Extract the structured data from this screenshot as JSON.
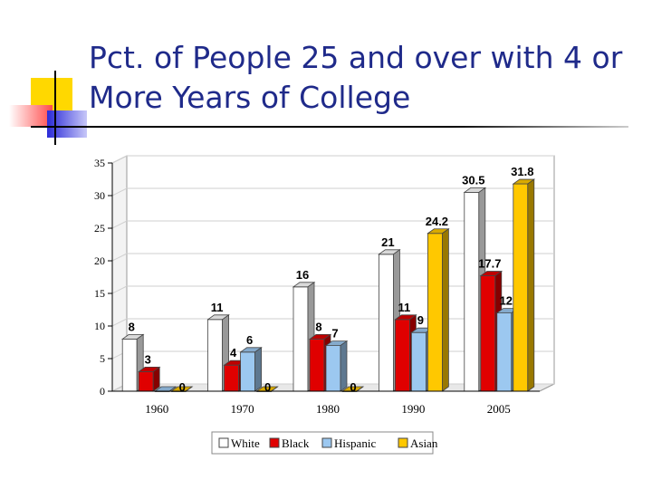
{
  "slide": {
    "title": "Pct. of People 25 and over with 4 or More Years of College"
  },
  "colors": {
    "title": "#1f2a8a",
    "deco_yellow": "#ffd800",
    "deco_red": "#ff3a3a",
    "deco_blue": "#2a2ad8",
    "rule": "#000000"
  },
  "chart_data": {
    "type": "bar",
    "style": "3d-clustered",
    "title": "",
    "xlabel": "",
    "ylabel": "",
    "ylim": [
      0,
      35
    ],
    "yticks": [
      0,
      5,
      10,
      15,
      20,
      25,
      30,
      35
    ],
    "grid": true,
    "legend_position": "bottom",
    "categories": [
      "1960",
      "1970",
      "1980",
      "1990",
      "2005"
    ],
    "series": [
      {
        "name": "White",
        "color": "#ffffff",
        "values": [
          8,
          11,
          16,
          21,
          30.5
        ],
        "labels": [
          "8",
          "11",
          "16",
          "21",
          "30.5"
        ]
      },
      {
        "name": "Black",
        "color": "#e00000",
        "values": [
          3,
          4,
          8,
          11,
          17.7
        ],
        "labels": [
          "3",
          "4",
          "8",
          "11",
          "17.7"
        ]
      },
      {
        "name": "Hispanic",
        "color": "#9cc8f0",
        "values": [
          0,
          6,
          7,
          9,
          12
        ],
        "labels": [
          "",
          "6",
          "7",
          "9",
          "12"
        ]
      },
      {
        "name": "Asian",
        "color": "#ffc800",
        "values": [
          0,
          0,
          0,
          24.2,
          31.8
        ],
        "labels": [
          "0",
          "0",
          "0",
          "24.2",
          "31.8"
        ]
      }
    ]
  }
}
